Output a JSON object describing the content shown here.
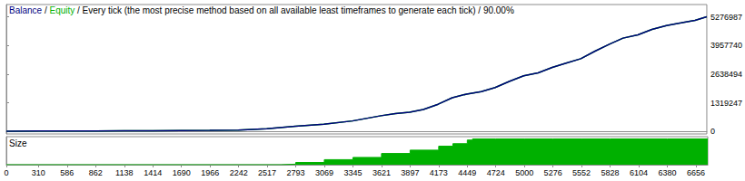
{
  "chart_data": [
    {
      "type": "line",
      "title": "Balance / Equity / Every tick (the most precise method based on all available least timeframes to generate each tick) / 90.00%",
      "x": [
        0,
        310,
        586,
        862,
        1138,
        1414,
        1690,
        1966,
        2242,
        2517,
        2793,
        3069,
        3345,
        3621,
        3760,
        3897,
        4030,
        4173,
        4310,
        4449,
        4590,
        4724,
        4860,
        5000,
        5140,
        5276,
        5410,
        5552,
        5690,
        5828,
        5960,
        6104,
        6240,
        6380,
        6520,
        6656,
        6770
      ],
      "series": [
        {
          "name": "Equity",
          "color": "#00b000",
          "values": [
            10000,
            12000,
            15000,
            18000,
            22000,
            27000,
            33000,
            42000,
            60000,
            120000,
            230000,
            330000,
            480000,
            720000,
            820000,
            880000,
            1010000,
            1250000,
            1550000,
            1720000,
            1830000,
            2020000,
            2300000,
            2560000,
            2700000,
            2950000,
            3150000,
            3350000,
            3700000,
            4020000,
            4300000,
            4450000,
            4700000,
            4880000,
            5000000,
            5120000,
            5290000
          ]
        },
        {
          "name": "Balance",
          "color": "#000080",
          "values": [
            10000,
            12000,
            15000,
            18000,
            22000,
            27000,
            33000,
            42000,
            60000,
            120000,
            230000,
            330000,
            480000,
            720000,
            820000,
            880000,
            1010000,
            1250000,
            1550000,
            1720000,
            1830000,
            2020000,
            2300000,
            2560000,
            2700000,
            2950000,
            3150000,
            3350000,
            3700000,
            4020000,
            4300000,
            4450000,
            4700000,
            4880000,
            5000000,
            5120000,
            5290000
          ]
        }
      ],
      "xlim": [
        0,
        6770
      ],
      "ylim": [
        -120000,
        5850000
      ],
      "yticks": [
        0,
        1319247,
        2638494,
        3957740,
        5276987
      ],
      "tick_labels": "y",
      "grid": false
    },
    {
      "type": "area",
      "title": "Size",
      "x": [
        0,
        310,
        586,
        862,
        1138,
        1414,
        1690,
        1966,
        2242,
        2517,
        2650,
        2793,
        3069,
        3345,
        3621,
        3897,
        4173,
        4310,
        4449,
        4500,
        4724,
        5000,
        5276,
        5552,
        5828,
        6104,
        6380,
        6656,
        6770
      ],
      "series": [
        {
          "name": "Size",
          "color": "#00b000",
          "values": [
            0,
            0,
            0,
            0,
            0,
            0,
            0,
            0,
            0,
            0,
            2,
            8,
            18,
            26,
            40,
            52,
            66,
            75,
            88,
            92,
            92,
            92,
            92,
            92,
            92,
            92,
            92,
            92,
            92
          ]
        }
      ],
      "xlim": [
        0,
        6770
      ],
      "xticks": [
        0,
        310,
        586,
        862,
        1138,
        1414,
        1690,
        1966,
        2242,
        2517,
        2793,
        3069,
        3345,
        3621,
        3897,
        4173,
        4449,
        4724,
        5000,
        5276,
        5552,
        5828,
        6104,
        6380,
        6656
      ],
      "ylim": [
        0,
        100
      ],
      "tick_labels": "x",
      "grid": false
    }
  ]
}
